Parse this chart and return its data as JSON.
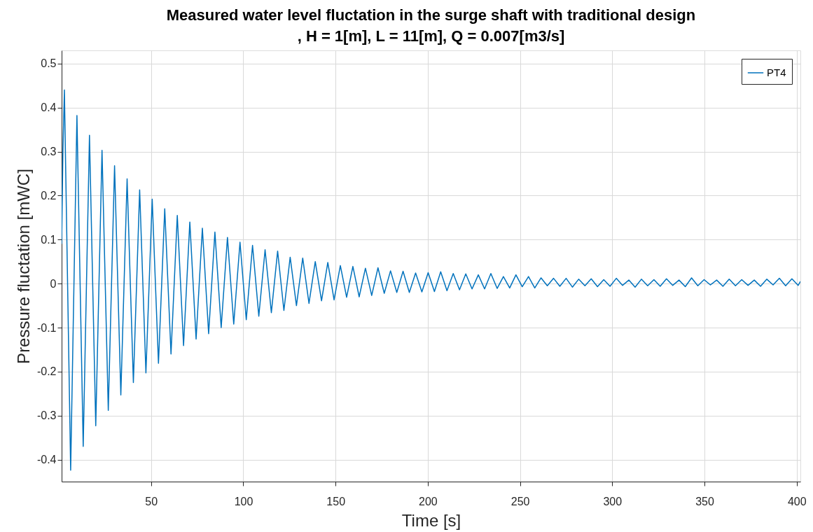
{
  "chart_data": {
    "type": "line",
    "title": "Measured water level fluctation in the surge shaft with traditional design\n, H = 1[m], L = 11[m], Q = 0.007[m3/s]",
    "xlabel": "Time [s]",
    "ylabel": "Pressure fluctation [mWC]",
    "xlim": [
      1.5,
      402
    ],
    "ylim": [
      -0.45,
      0.53
    ],
    "xticks": [
      50,
      100,
      150,
      200,
      250,
      300,
      350,
      400
    ],
    "yticks": [
      -0.4,
      -0.3,
      -0.2,
      -0.1,
      0,
      0.1,
      0.2,
      0.3,
      0.4,
      0.5
    ],
    "grid": true,
    "legend": "top right",
    "line_style": "solid",
    "marker": "none",
    "series": [
      {
        "name": "PT4",
        "color": "#0072bd",
        "x": [
          1.5,
          2.2,
          3.0,
          6.4,
          9.8,
          13.2,
          16.6,
          20.0,
          23.4,
          26.8,
          30.2,
          33.6,
          37.0,
          40.4,
          43.8,
          47.2,
          50.6,
          54.0,
          57.4,
          60.8,
          64.2,
          67.6,
          71.0,
          74.4,
          77.8,
          81.2,
          84.6,
          88.0,
          91.4,
          94.8,
          98.2,
          101.6,
          105.0,
          108.4,
          111.8,
          115.2,
          118.6,
          122.0,
          125.4,
          128.8,
          132.2,
          135.6,
          139.0,
          142.4,
          145.8,
          149.2,
          152.6,
          156.0,
          159.4,
          162.8,
          166.2,
          169.6,
          173.0,
          176.4,
          179.8,
          183.2,
          186.6,
          190.0,
          193.4,
          196.8,
          200.2,
          203.6,
          207.0,
          210.4,
          213.8,
          217.2,
          220.6,
          224.0,
          227.4,
          230.8,
          234.2,
          237.6,
          241.0,
          244.4,
          247.8,
          251.2,
          254.6,
          258.0,
          261.4,
          264.8,
          268.2,
          271.6,
          275.0,
          278.4,
          281.8,
          285.2,
          288.6,
          292.0,
          295.4,
          298.8,
          302.2,
          305.6,
          309.0,
          312.4,
          315.8,
          319.2,
          322.6,
          326.0,
          329.4,
          332.8,
          336.2,
          339.6,
          343.0,
          346.4,
          349.8,
          353.2,
          356.6,
          360.0,
          363.4,
          366.8,
          370.2,
          373.6,
          377.0,
          380.4,
          383.8,
          387.2,
          390.6,
          394.0,
          397.4,
          400.8,
          402
        ],
        "values": [
          0.09,
          0.3,
          0.44,
          -0.424,
          0.382,
          -0.37,
          0.337,
          -0.323,
          0.303,
          -0.288,
          0.268,
          -0.253,
          0.238,
          -0.225,
          0.213,
          -0.203,
          0.192,
          -0.181,
          0.17,
          -0.16,
          0.155,
          -0.141,
          0.14,
          -0.126,
          0.126,
          -0.114,
          0.117,
          -0.1,
          0.105,
          -0.092,
          0.094,
          -0.082,
          0.087,
          -0.074,
          0.077,
          -0.066,
          0.074,
          -0.061,
          0.06,
          -0.05,
          0.058,
          -0.045,
          0.05,
          -0.039,
          0.048,
          -0.037,
          0.041,
          -0.031,
          0.039,
          -0.03,
          0.035,
          -0.027,
          0.036,
          -0.022,
          0.029,
          -0.02,
          0.028,
          -0.02,
          0.024,
          -0.019,
          0.025,
          -0.018,
          0.027,
          -0.016,
          0.023,
          -0.014,
          0.022,
          -0.012,
          0.02,
          -0.012,
          0.023,
          -0.011,
          0.016,
          -0.01,
          0.02,
          -0.007,
          0.016,
          -0.01,
          0.013,
          -0.005,
          0.012,
          -0.006,
          0.012,
          -0.008,
          0.01,
          -0.005,
          0.011,
          -0.007,
          0.009,
          -0.006,
          0.012,
          -0.004,
          0.008,
          -0.008,
          0.01,
          -0.005,
          0.009,
          -0.006,
          0.011,
          -0.004,
          0.008,
          -0.007,
          0.013,
          -0.005,
          0.009,
          -0.003,
          0.008,
          -0.006,
          0.01,
          -0.005,
          0.009,
          -0.004,
          0.008,
          -0.006,
          0.01,
          -0.003,
          0.012,
          -0.005,
          0.011,
          -0.004,
          0.005
        ]
      }
    ]
  }
}
